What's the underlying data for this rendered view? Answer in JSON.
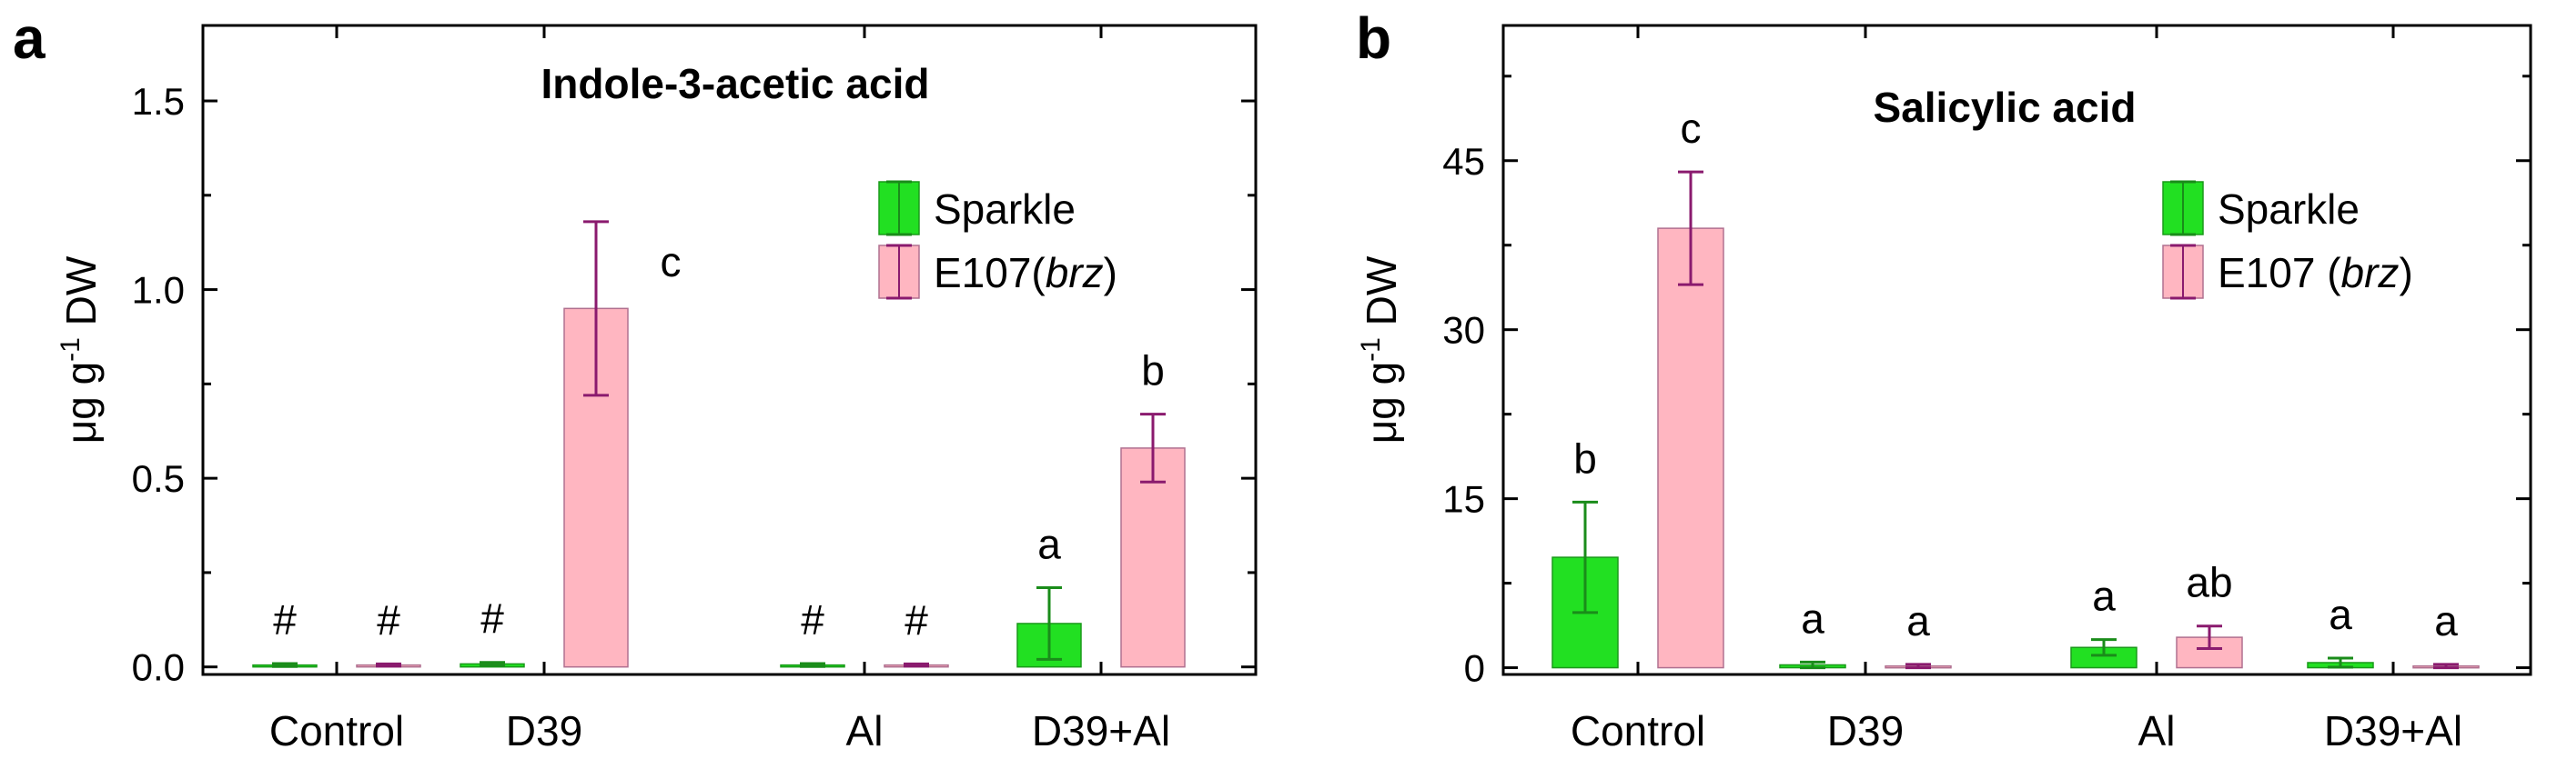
{
  "panels": [
    {
      "letter": "a",
      "chart_data": {
        "type": "bar",
        "title": "Indole-3-acetic acid",
        "xlabel": "",
        "ylabel": "μg g⁻¹ DW",
        "ylabel_parts": [
          "μg g",
          "-1",
          " DW"
        ],
        "ylim": [
          -0.02,
          1.7
        ],
        "yticks": [
          0.0,
          0.5,
          1.0,
          1.5
        ],
        "ytick_labels": [
          "0.0",
          "0.5",
          "1.0",
          "1.5"
        ],
        "categories": [
          "Control",
          "D39",
          "Al",
          "D39+Al"
        ],
        "series": [
          {
            "name": "Sparkle",
            "color": "#22e022",
            "edge": "#1a9a1a",
            "values": [
              0.005,
              0.008,
              0.005,
              0.115
            ],
            "errors": [
              0.004,
              0.004,
              0.004,
              0.095
            ],
            "annotations": [
              "#",
              "#",
              "#",
              "a"
            ]
          },
          {
            "name": "E107(brz)",
            "color": "#ffb6c1",
            "edge": "#b07090",
            "values": [
              0.005,
              0.95,
              0.005,
              0.58
            ],
            "errors": [
              0.003,
              0.23,
              0.003,
              0.09
            ],
            "annotations": [
              "#",
              "c",
              "#",
              "b"
            ]
          }
        ],
        "legend": {
          "position": "top-right",
          "entries": [
            {
              "text": "Sparkle",
              "italic": ""
            },
            {
              "text": "E107(",
              "italic": "brz",
              "suffix": ")"
            }
          ]
        }
      }
    },
    {
      "letter": "b",
      "chart_data": {
        "type": "bar",
        "title": "Salicylic acid",
        "xlabel": "",
        "ylabel": "μg g⁻¹ DW",
        "ylabel_parts": [
          "μg g",
          "-1",
          " DW"
        ],
        "ylim": [
          -0.6,
          57
        ],
        "yticks": [
          0,
          15,
          30,
          45
        ],
        "ytick_labels": [
          "0",
          "15",
          "30",
          "45"
        ],
        "categories": [
          "Control",
          "D39",
          "Al",
          "D39+Al"
        ],
        "series": [
          {
            "name": "Sparkle",
            "color": "#22e022",
            "edge": "#1a9a1a",
            "values": [
              9.8,
              0.25,
              1.8,
              0.45
            ],
            "errors": [
              4.9,
              0.25,
              0.7,
              0.4
            ],
            "annotations": [
              "b",
              "a",
              "a",
              "a"
            ]
          },
          {
            "name": "E107 (brz)",
            "color": "#ffb6c1",
            "edge": "#b07090",
            "values": [
              39.0,
              0.15,
              2.7,
              0.15
            ],
            "errors": [
              5.0,
              0.15,
              1.0,
              0.15
            ],
            "annotations": [
              "c",
              "a",
              "ab",
              "a"
            ]
          }
        ],
        "legend": {
          "position": "top-right",
          "entries": [
            {
              "text": "Sparkle",
              "italic": ""
            },
            {
              "text": "E107 (",
              "italic": "brz",
              "suffix": ")"
            }
          ]
        }
      }
    }
  ]
}
